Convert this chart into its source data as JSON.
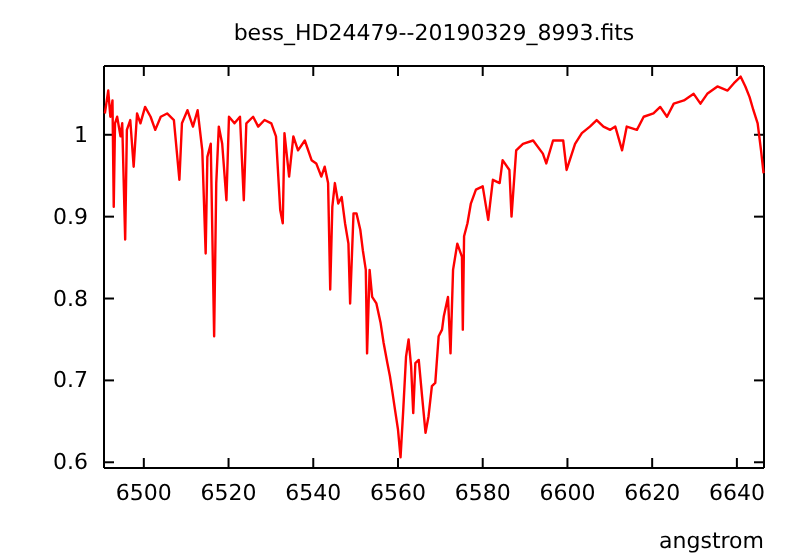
{
  "chart_data": {
    "type": "line",
    "title": "bess_HD24479--20190329_8993.fits",
    "xlabel": "angstrom",
    "xlim": [
      6490.6,
      6646.4
    ],
    "ylim": [
      0.593,
      1.084
    ],
    "xticks": [
      6500,
      6520,
      6540,
      6560,
      6580,
      6600,
      6620,
      6640
    ],
    "yticks": [
      0.6,
      0.7,
      0.8,
      0.9,
      1
    ],
    "marker": "none",
    "line_style": "solid",
    "series": [
      {
        "color": "#ff0000",
        "x": [
          6490.8,
          6491.6,
          6492.1,
          6492.6,
          6492.9,
          6493.2,
          6493.7,
          6494.5,
          6494.9,
          6495.6,
          6496.0,
          6496.8,
          6497.6,
          6498.4,
          6499.2,
          6500.3,
          6501.6,
          6502.7,
          6504.0,
          6505.5,
          6507.1,
          6508.4,
          6509.0,
          6510.3,
          6511.6,
          6512.7,
          6513.8,
          6514.6,
          6515.0,
          6515.8,
          6516.6,
          6517.1,
          6517.7,
          6518.5,
          6519.5,
          6520.1,
          6521.4,
          6522.7,
          6523.6,
          6524.2,
          6525.8,
          6527.0,
          6528.5,
          6530.1,
          6531.2,
          6532.2,
          6532.8,
          6533.2,
          6534.3,
          6535.3,
          6536.4,
          6538.0,
          6539.6,
          6540.7,
          6541.9,
          6542.7,
          6543.5,
          6544.0,
          6544.5,
          6545.1,
          6545.9,
          6546.7,
          6547.5,
          6548.3,
          6548.7,
          6549.5,
          6550.2,
          6551.1,
          6551.7,
          6552.4,
          6552.7,
          6553.3,
          6553.9,
          6554.9,
          6555.9,
          6556.6,
          6557.5,
          6558.1,
          6558.7,
          6559.3,
          6560.0,
          6560.6,
          6561.2,
          6561.9,
          6562.5,
          6563.1,
          6563.6,
          6564.1,
          6564.9,
          6565.7,
          6566.5,
          6567.2,
          6568.0,
          6568.8,
          6569.6,
          6570.4,
          6570.8,
          6571.8,
          6572.4,
          6573.0,
          6574.0,
          6575.1,
          6575.3,
          6575.6,
          6576.4,
          6577.2,
          6578.4,
          6580.0,
          6581.3,
          6582.4,
          6584.0,
          6584.7,
          6586.3,
          6586.8,
          6587.9,
          6589.5,
          6591.9,
          6594.2,
          6595.0,
          6596.6,
          6599.0,
          6599.8,
          6601.8,
          6603.4,
          6605.3,
          6606.9,
          6608.5,
          6610.1,
          6611.3,
          6612.9,
          6614.0,
          6616.4,
          6618.0,
          6620.3,
          6621.9,
          6623.5,
          6625.1,
          6627.5,
          6629.8,
          6631.4,
          6633.0,
          6635.4,
          6637.8,
          6639.3,
          6640.9,
          6642.0,
          6643.0,
          6643.9,
          6644.9,
          6645.7,
          6646.3
        ],
        "values": [
          1.026,
          1.054,
          1.022,
          1.042,
          0.912,
          1.014,
          1.022,
          0.998,
          1.014,
          0.872,
          1.006,
          1.018,
          0.961,
          1.026,
          1.014,
          1.034,
          1.022,
          1.006,
          1.022,
          1.026,
          1.018,
          0.945,
          1.014,
          1.03,
          1.01,
          1.03,
          0.981,
          0.855,
          0.973,
          0.989,
          0.754,
          0.941,
          1.01,
          0.989,
          0.92,
          1.022,
          1.014,
          1.022,
          0.92,
          1.014,
          1.022,
          1.01,
          1.018,
          1.014,
          0.998,
          0.908,
          0.892,
          1.002,
          0.949,
          0.998,
          0.981,
          0.993,
          0.969,
          0.965,
          0.949,
          0.961,
          0.941,
          0.811,
          0.912,
          0.941,
          0.916,
          0.924,
          0.892,
          0.867,
          0.794,
          0.904,
          0.904,
          0.884,
          0.859,
          0.835,
          0.733,
          0.835,
          0.802,
          0.794,
          0.77,
          0.746,
          0.721,
          0.705,
          0.685,
          0.664,
          0.64,
          0.606,
          0.66,
          0.729,
          0.75,
          0.717,
          0.66,
          0.721,
          0.725,
          0.68,
          0.636,
          0.656,
          0.693,
          0.697,
          0.754,
          0.762,
          0.778,
          0.802,
          0.733,
          0.835,
          0.867,
          0.851,
          0.762,
          0.876,
          0.892,
          0.916,
          0.933,
          0.937,
          0.896,
          0.945,
          0.941,
          0.969,
          0.957,
          0.9,
          0.981,
          0.989,
          0.993,
          0.977,
          0.965,
          0.993,
          0.993,
          0.957,
          0.989,
          1.002,
          1.01,
          1.018,
          1.01,
          1.006,
          1.01,
          0.981,
          1.01,
          1.006,
          1.022,
          1.026,
          1.034,
          1.022,
          1.038,
          1.042,
          1.05,
          1.038,
          1.05,
          1.059,
          1.054,
          1.063,
          1.071,
          1.059,
          1.046,
          1.03,
          1.014,
          0.981,
          0.953
        ]
      }
    ]
  }
}
